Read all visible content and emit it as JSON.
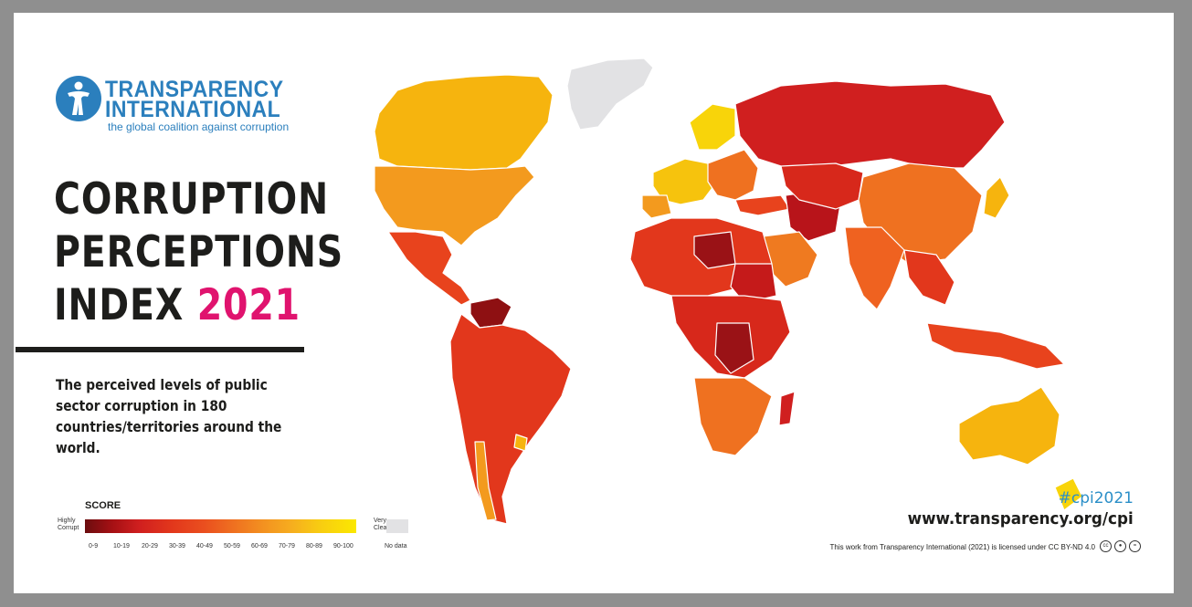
{
  "logo": {
    "line1": "TRANSPARENCY",
    "line2": "INTERNATIONAL",
    "tagline": "the global coalition against corruption"
  },
  "title": {
    "line1": "CORRUPTION",
    "line2": "PERCEPTIONS",
    "line3_word": "INDEX",
    "year": "2021"
  },
  "description": "The perceived levels of public sector corruption in 180 countries/territories around the world.",
  "legend": {
    "title": "SCORE",
    "low_end": [
      "Highly",
      "Corrupt"
    ],
    "high_end": [
      "Very",
      "Clean"
    ],
    "ranges": [
      "0-9",
      "10-19",
      "20-29",
      "30-39",
      "40-49",
      "50-59",
      "60-69",
      "70-79",
      "80-89",
      "90-100"
    ],
    "no_data": "No data",
    "colors": [
      "#6b0d0f",
      "#a51014",
      "#d01f1f",
      "#e2371c",
      "#ea4f1f",
      "#ef7120",
      "#f39220",
      "#f6ad1f",
      "#f8cb12",
      "#fbe800"
    ],
    "no_data_color": "#e2e2e4"
  },
  "footer": {
    "hashtag": "#cpi2021",
    "website": "www.transparency.org/cpi",
    "license": "This work from Transparency International (2021) is licensed under CC BY-ND 4.0",
    "cc_icons": [
      "cc-icon",
      "by-icon",
      "nd-icon"
    ]
  },
  "colors": {
    "brand_blue": "#2b7fbd",
    "accent_pink": "#e0136e",
    "text_dark": "#1d1d1b",
    "frame_gray": "#8f8f8f"
  }
}
